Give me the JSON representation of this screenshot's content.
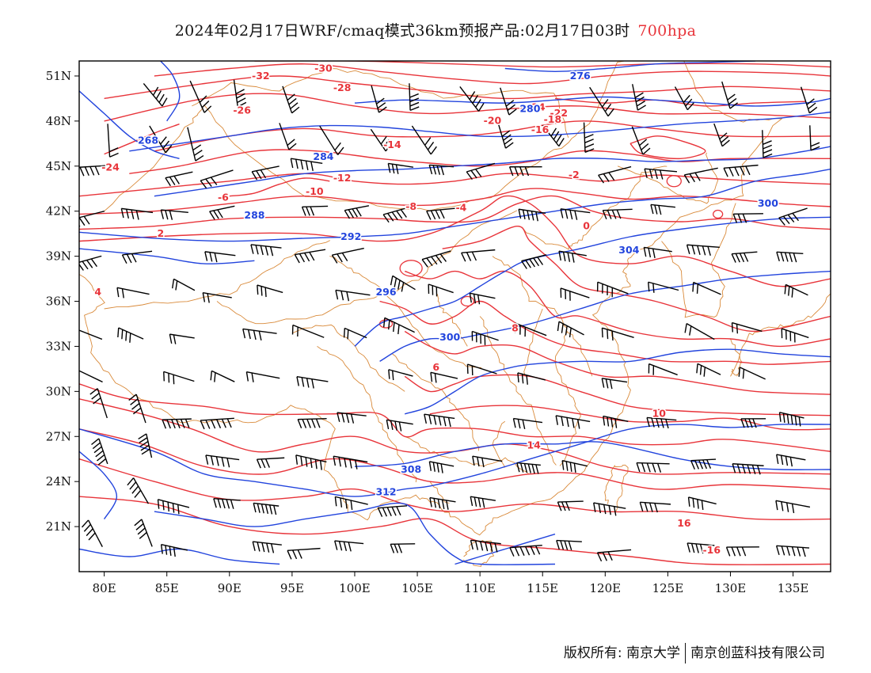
{
  "header": {
    "title": "2024年02月17日WRF/cmaq模式36km预报产品:02月17日03时",
    "level": "700hpa"
  },
  "colors": {
    "temperature": "#e8343a",
    "height": "#2244dd",
    "boundary": "#d98a3a",
    "wind": "#000000",
    "frame": "#000000"
  },
  "map": {
    "lon_range": [
      78,
      138
    ],
    "lat_range": [
      18,
      52
    ],
    "lon_ticks": [
      "80E",
      "85E",
      "90E",
      "95E",
      "100E",
      "105E",
      "110E",
      "115E",
      "120E",
      "125E",
      "130E",
      "135E"
    ],
    "lat_ticks": [
      "21N",
      "24N",
      "27N",
      "30N",
      "33N",
      "36N",
      "39N",
      "42N",
      "45N",
      "48N",
      "51N"
    ],
    "temperature_labels": [
      "-30",
      "-32",
      "-28",
      "-26",
      "-24",
      "-22",
      "-20",
      "-16",
      "-14",
      "-12",
      "-10",
      "-8",
      "-6",
      "-4",
      "-2",
      "0",
      "2",
      "4",
      "6",
      "8",
      "10",
      "14",
      "16",
      "-16",
      "-18",
      "-24"
    ],
    "height_labels": [
      "268",
      "284",
      "288",
      "292",
      "296",
      "300",
      "304",
      "308",
      "312",
      "276",
      "280",
      "300"
    ],
    "legend_icon": "wind-barb-icon"
  },
  "footer": {
    "copyright_left": "版权所有: 南京大学",
    "copyright_right": "南京创蓝科技有限公司"
  }
}
